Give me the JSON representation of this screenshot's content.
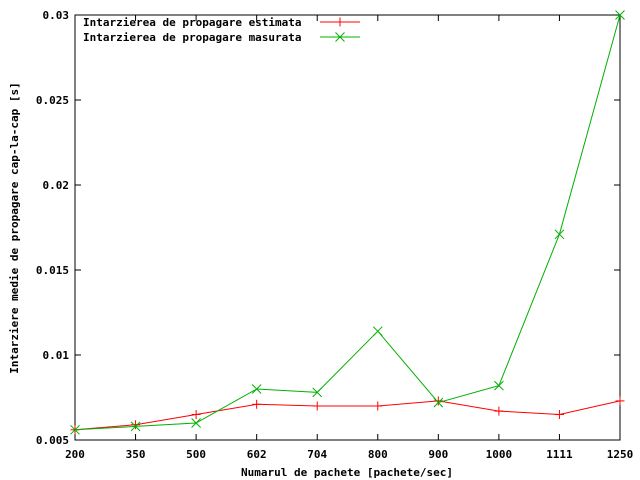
{
  "chart_data": {
    "type": "line",
    "title": "",
    "xlabel": "Numarul de pachete [pachete/sec]",
    "ylabel": "Intarziere medie de propagare cap-la-cap [s]",
    "categories": [
      "200",
      "350",
      "500",
      "602",
      "704",
      "800",
      "900",
      "1000",
      "1111",
      "1250"
    ],
    "y_ticks": [
      "0.005",
      "0.01",
      "0.015",
      "0.02",
      "0.025",
      "0.03"
    ],
    "ylim": [
      0.005,
      0.03
    ],
    "grid": false,
    "legend_position": "top-left",
    "series": [
      {
        "name": "Intarzierea de propagare estimata",
        "color": "#ff0000",
        "marker": "plus",
        "values": [
          0.0056,
          0.0059,
          0.0065,
          0.0071,
          0.007,
          0.007,
          0.0073,
          0.0067,
          0.0065,
          0.0073
        ]
      },
      {
        "name": "Intarzierea de propagare masurata",
        "color": "#00b000",
        "marker": "cross",
        "values": [
          0.0056,
          0.0058,
          0.006,
          0.008,
          0.0078,
          0.0114,
          0.0072,
          0.0082,
          0.0171,
          0.03
        ]
      }
    ]
  }
}
